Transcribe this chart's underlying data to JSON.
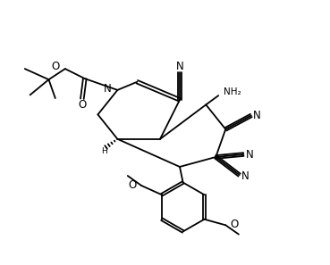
{
  "bg_color": "#ffffff",
  "line_color": "#000000",
  "line_width": 1.3,
  "font_size": 7.5,
  "fig_width": 3.69,
  "fig_height": 2.97,
  "xlim": [
    0,
    10
  ],
  "ylim": [
    0,
    8
  ]
}
